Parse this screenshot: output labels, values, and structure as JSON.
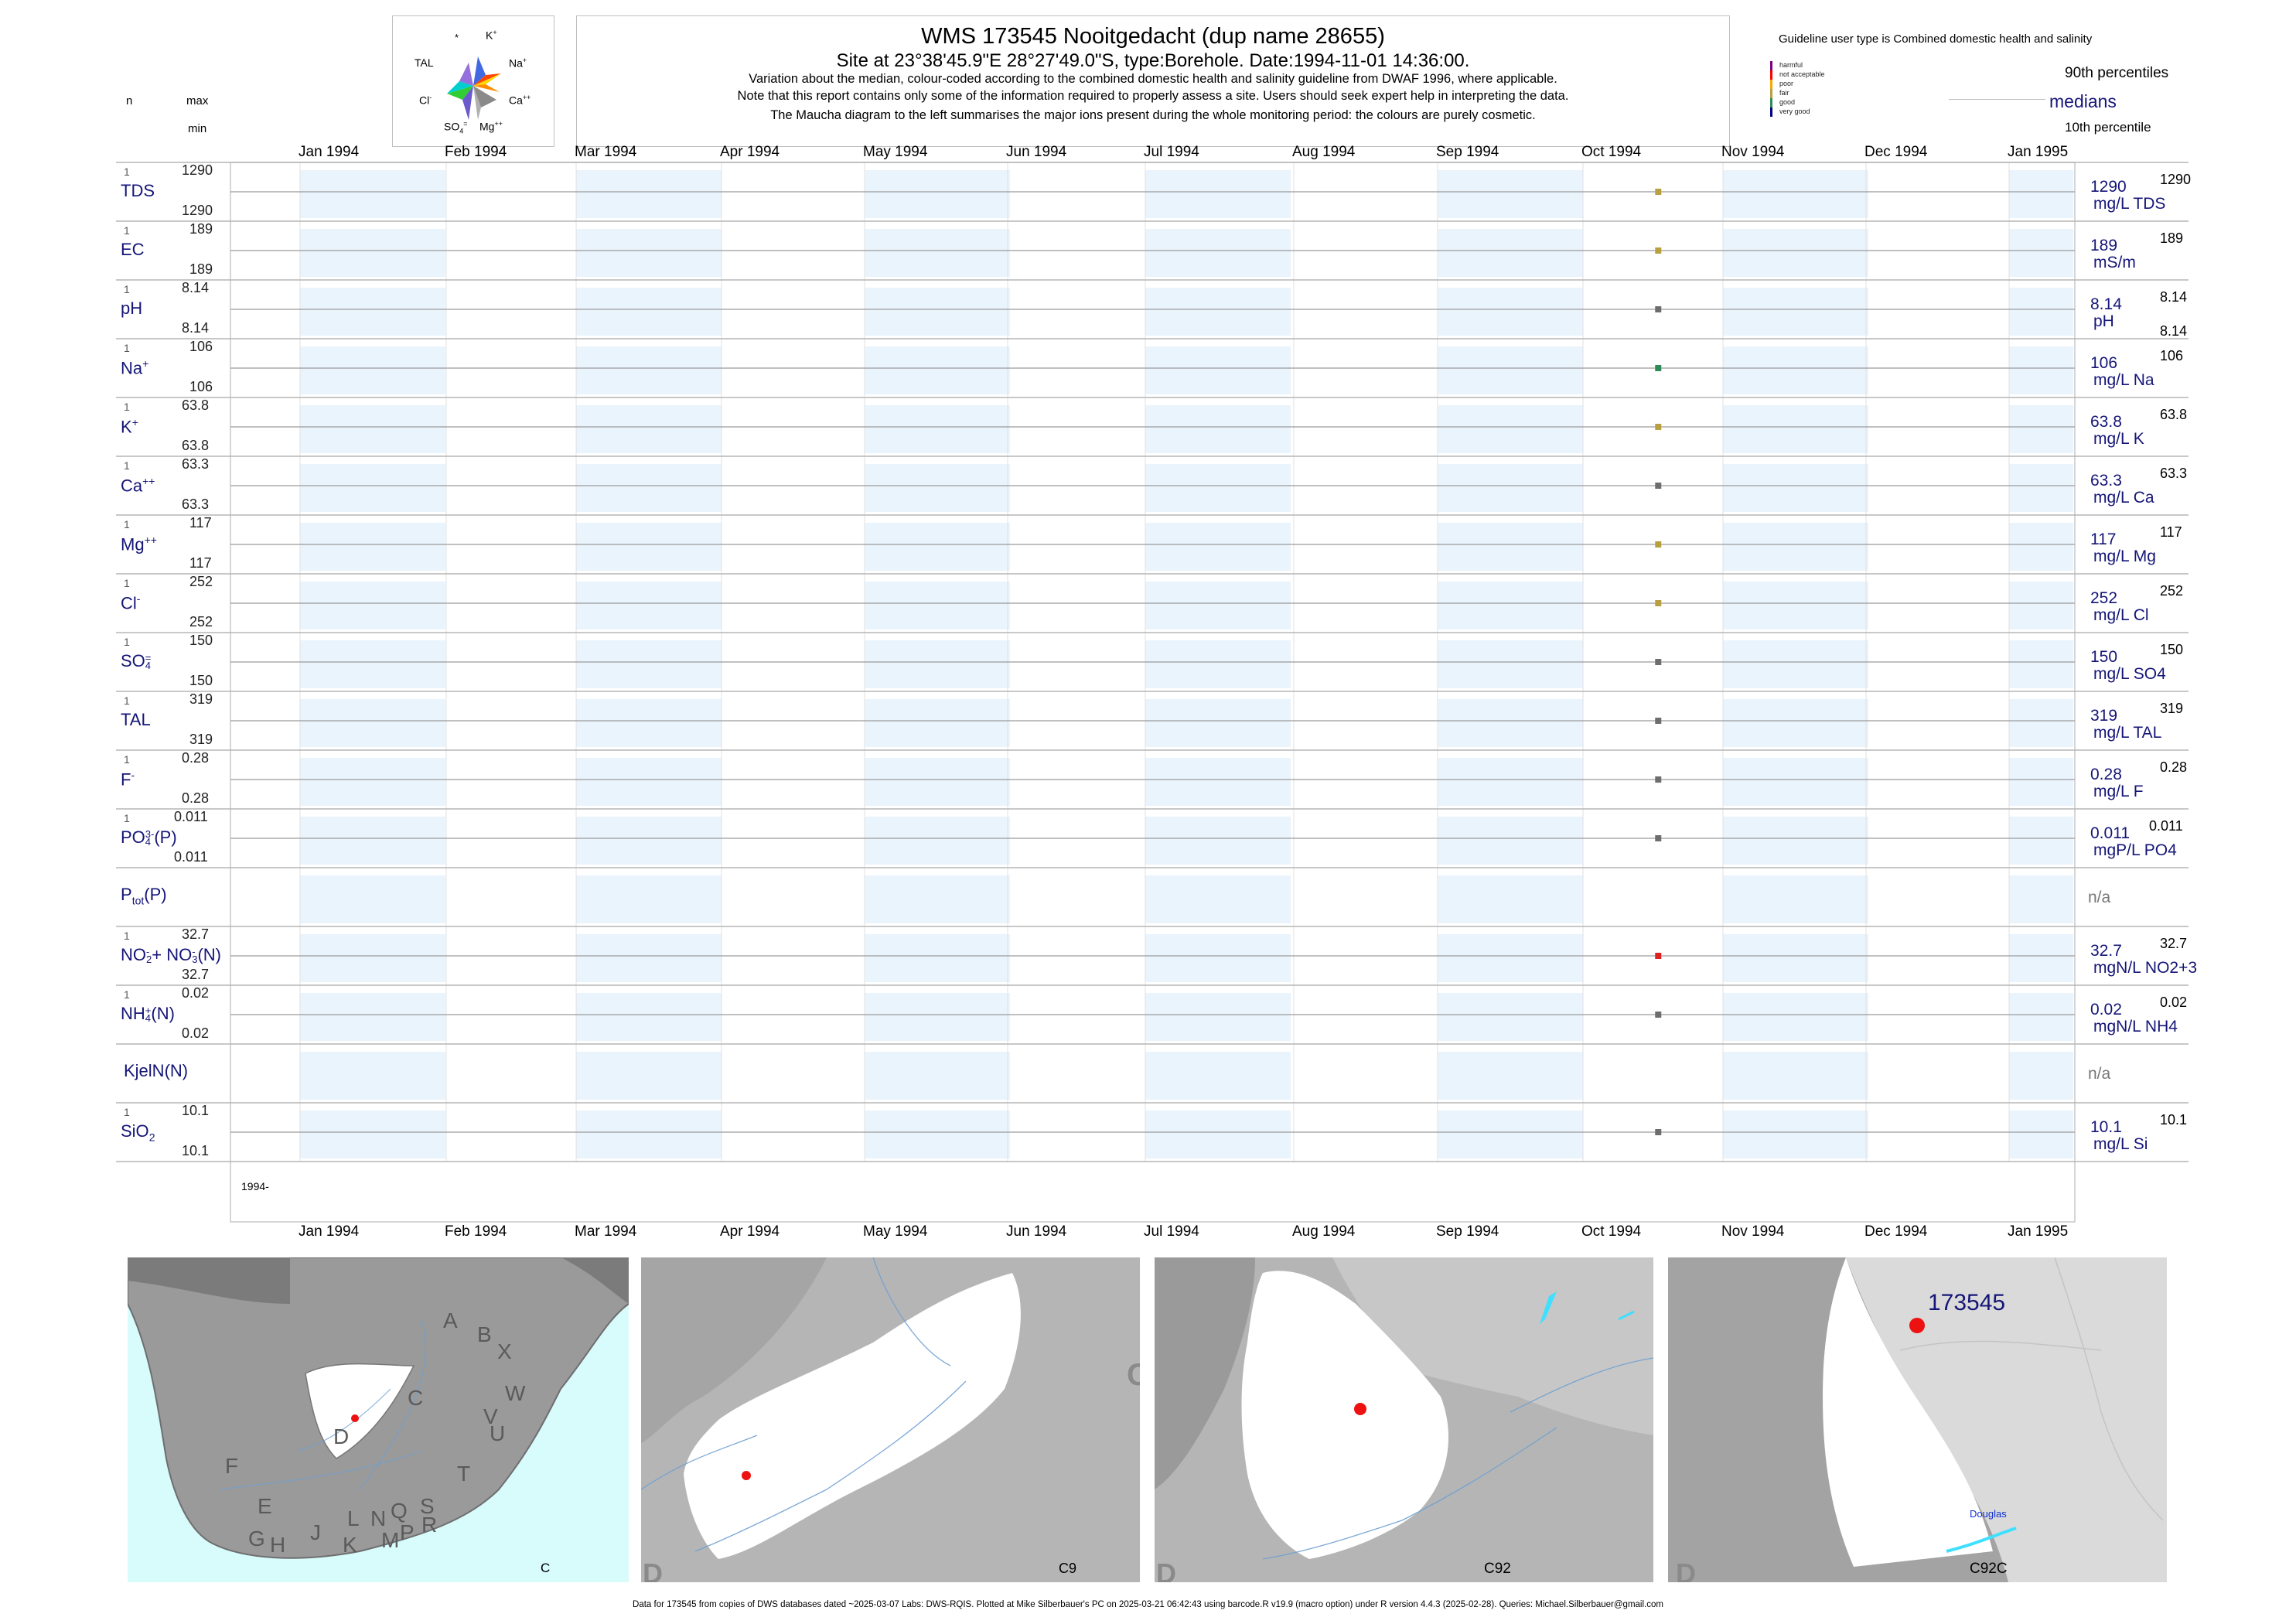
{
  "header": {
    "title": "WMS 173545  Nooitgedacht (dup name 28655)",
    "site": "Site at 23°38'45.9\"E 28°27'49.0\"S, type:Borehole. Date:1994-11-01 14:36:00.",
    "note1": "Variation about the median,  colour-coded according to the combined domestic health and salinity guideline from DWAF 1996, where applicable.",
    "note2": "Note that this report contains only some of the information required to properly assess a site. Users should seek expert help in interpreting the data.",
    "note3": "The Maucha diagram to the left summarises the major ions present during the whole monitoring period: the colours are purely cosmetic."
  },
  "maucha": {
    "labels": [
      "*",
      "K+",
      "Na+",
      "Ca++",
      "Mg++",
      "SO4=",
      "Cl-",
      "TAL"
    ],
    "label_k": "K",
    "label_k_sup": "+",
    "label_na": "Na",
    "label_na_sup": "+",
    "label_ca": "Ca",
    "label_ca_sup": "++",
    "label_mg": "Mg",
    "label_mg_sup": "++",
    "label_so": "SO",
    "label_so_sub": "4",
    "label_so_sup": "=",
    "label_cl": "Cl",
    "label_cl_sup": "-",
    "label_tal": "TAL",
    "label_star": "*",
    "colors": [
      "#ffd700",
      "#ff0000",
      "#ff8c00",
      "#808080",
      "#a0a0a0",
      "#4169e1",
      "#32cd32",
      "#00ced1"
    ]
  },
  "left_header": {
    "n": "n",
    "max": "max",
    "min": "min"
  },
  "legend": {
    "guideline": "Guideline user type is Combined domestic health and salinity",
    "items": [
      "harmful",
      "not acceptable",
      "poor",
      "fair",
      "good",
      "very good"
    ],
    "item_colors": [
      "#800080",
      "#ff0000",
      "#ffa500",
      "#b8a040",
      "#2e8b57",
      "#00008b"
    ],
    "p90": "90th percentiles",
    "medians": "medians",
    "p10": "10th percentile"
  },
  "axis": {
    "months": [
      "Jan 1994",
      "Feb 1994",
      "Mar 1994",
      "Apr 1994",
      "May 1994",
      "Jun 1994",
      "Jul 1994",
      "Aug 1994",
      "Sep 1994",
      "Oct 1994",
      "Nov 1994",
      "Dec 1994",
      "Jan 1995"
    ],
    "year_label": "1994-"
  },
  "chart_data": {
    "type": "scatter",
    "x_range": [
      "1994-01-01",
      "1995-01-31"
    ],
    "sample_date": "1994-11-01",
    "panels": [
      {
        "label": "TDS",
        "n": "1",
        "max": "1290",
        "min": "1290",
        "median": "1290",
        "right_top": "1290",
        "unit": "mg/L TDS",
        "color": "#b8a040"
      },
      {
        "label": "EC",
        "n": "1",
        "max": "189",
        "min": "189",
        "median": "189",
        "right_top": "189",
        "unit": "mS/m",
        "color": "#b8a040"
      },
      {
        "label": "pH",
        "n": "1",
        "max": "8.14",
        "min": "8.14",
        "median": "8.14",
        "right_top": "8.14",
        "right_bottom": "8.14",
        "unit": "pH",
        "color": "#6d6d6d"
      },
      {
        "label": "Na",
        "sup": "+",
        "n": "1",
        "max": "106",
        "min": "106",
        "median": "106",
        "right_top": "106",
        "unit": "mg/L Na",
        "color": "#2e8b57"
      },
      {
        "label": "K",
        "sup": "+",
        "n": "1",
        "max": "63.8",
        "min": "63.8",
        "median": "63.8",
        "right_top": "63.8",
        "unit": "mg/L K",
        "color": "#b8a040"
      },
      {
        "label": "Ca",
        "sup": "++",
        "n": "1",
        "max": "63.3",
        "min": "63.3",
        "median": "63.3",
        "right_top": "63.3",
        "unit": "mg/L Ca",
        "color": "#6d6d6d"
      },
      {
        "label": "Mg",
        "sup": "++",
        "n": "1",
        "max": "117",
        "min": "117",
        "median": "117",
        "right_top": "117",
        "unit": "mg/L Mg",
        "color": "#b8a040"
      },
      {
        "label": "Cl",
        "sup": "-",
        "n": "1",
        "max": "252",
        "min": "252",
        "median": "252",
        "right_top": "252",
        "unit": "mg/L Cl",
        "color": "#b8a040"
      },
      {
        "label": "SO",
        "sub": "4",
        "sup": "=",
        "n": "1",
        "max": "150",
        "min": "150",
        "median": "150",
        "right_top": "150",
        "unit": "mg/L SO4",
        "color": "#6d6d6d"
      },
      {
        "label": "TAL",
        "n": "1",
        "max": "319",
        "min": "319",
        "median": "319",
        "right_top": "319",
        "unit": "mg/L TAL",
        "color": "#6d6d6d"
      },
      {
        "label": "F",
        "sup": "-",
        "n": "1",
        "max": "0.28",
        "min": "0.28",
        "median": "0.28",
        "right_top": "0.28",
        "unit": "mg/L F",
        "color": "#6d6d6d"
      },
      {
        "label": "PO",
        "sub": "4",
        "sup": "3-",
        "tail": "(P)",
        "n": "1",
        "max": "0.011",
        "min": "0.011",
        "median": "0.011",
        "right_top": "0.011",
        "unit": "mgP/L PO4",
        "color": "#6d6d6d"
      },
      {
        "label": "P",
        "sub": "tot",
        "tail": "(P)",
        "na": "n/a"
      },
      {
        "label": "NO",
        "sub": "2",
        "sup": "-",
        "tail": "+ NO",
        "sub2": "3",
        "sup2": "-",
        "tail2": "(N)",
        "n": "1",
        "max": "32.7",
        "min": "32.7",
        "median": "32.7",
        "right_top": "32.7",
        "unit": "mgN/L NO2+3",
        "color": "#dd2020"
      },
      {
        "label": "NH",
        "sub": "4",
        "sup": "+",
        "tail": "(N)",
        "n": "1",
        "max": "0.02",
        "min": "0.02",
        "median": "0.02",
        "right_top": "0.02",
        "unit": "mgN/L NH4",
        "color": "#6d6d6d"
      },
      {
        "label": "KjelN(N)",
        "na": "n/a"
      },
      {
        "label": "SiO",
        "sub": "2",
        "n": "1",
        "max": "10.1",
        "min": "10.1",
        "median": "10.1",
        "right_top": "10.1",
        "unit": "mg/L Si",
        "color": "#6d6d6d"
      }
    ]
  },
  "maps": {
    "regions": [
      "A",
      "B",
      "X",
      "W",
      "C",
      "V",
      "U",
      "D",
      "T",
      "F",
      "E",
      "L",
      "N",
      "Q",
      "S",
      "R",
      "G",
      "H",
      "J",
      "K",
      "M",
      "P"
    ],
    "codes": [
      "C",
      "C9",
      "C92",
      "C92C"
    ],
    "site_label": "173545",
    "town_label": "Douglas",
    "corner_D": "D",
    "corner_C": "C"
  },
  "footer": "Data for 173545 from copies of DWS databases dated ~2025-03-07 Labs: DWS-RQIS. Plotted at Mike Silberbauer's PC on 2025-03-21 06:42:43 using barcode.R v19.9 (macro option) under R version 4.4.3 (2025-02-28). Queries: Michael.Silberbauer@gmail.com"
}
